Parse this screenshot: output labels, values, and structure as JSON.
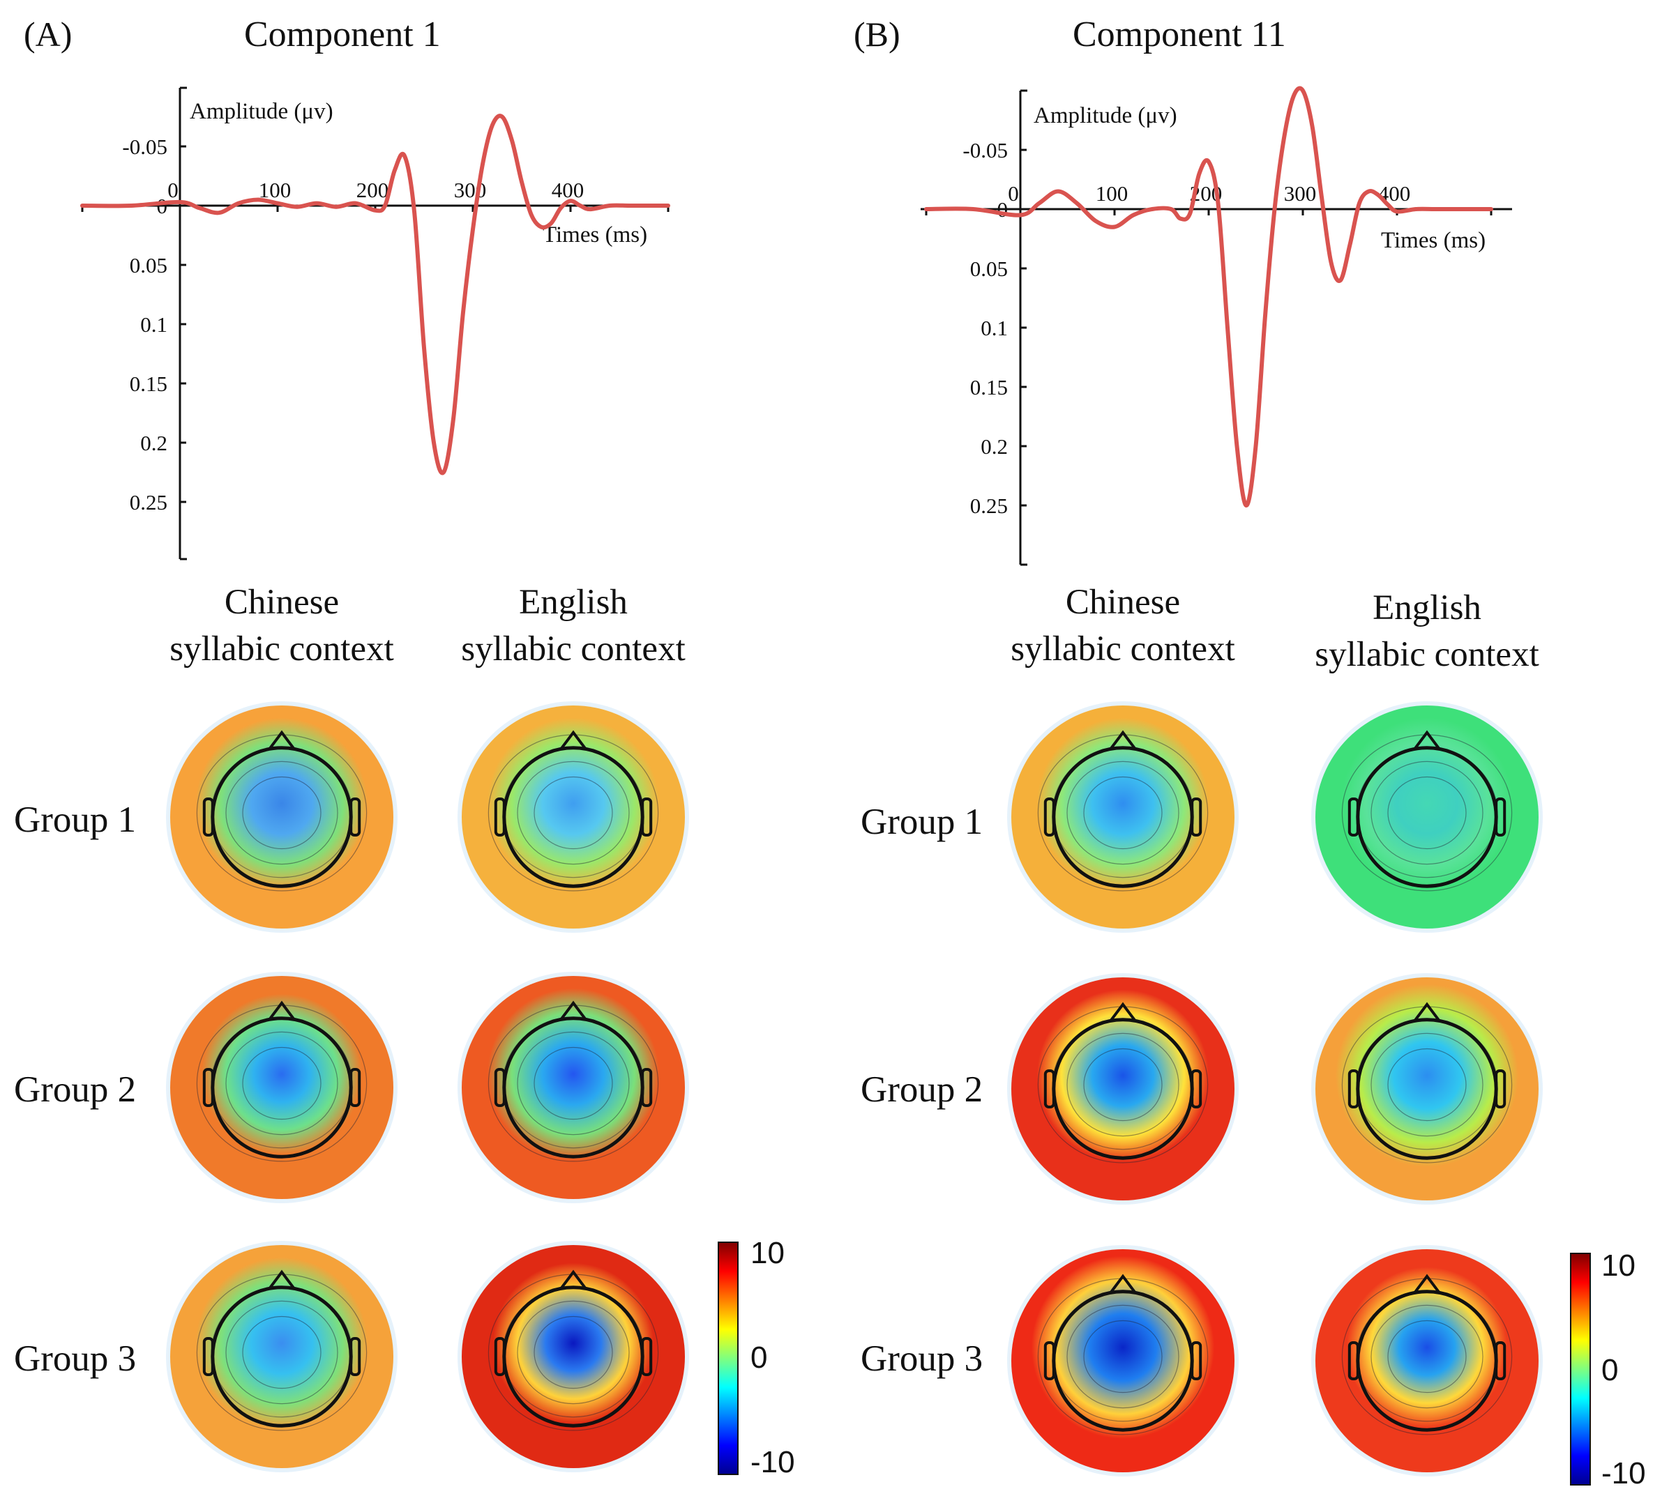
{
  "panels": [
    {
      "label": "(A)",
      "title": "Component 1",
      "chart_data": {
        "type": "line",
        "title": "Component 1",
        "ylabel": "Amplitude (μv)",
        "xlabel": "Times (ms)",
        "y_reversed": true,
        "xlim": [
          -100,
          500
        ],
        "ylim": [
          -0.1,
          0.3
        ],
        "xticks": [
          0,
          100,
          200,
          300,
          400
        ],
        "xtick_labels": [
          "0",
          "100",
          "200",
          "300",
          "400"
        ],
        "yticks": [
          -0.05,
          0,
          0.05,
          0.1,
          0.15,
          0.2,
          0.25
        ],
        "ytick_labels": [
          "-0.05",
          "0",
          "0.05",
          "0.1",
          "0.15",
          "0.2",
          "0.25"
        ],
        "series": [
          {
            "name": "Component 1",
            "color": "#d9534f",
            "x": [
              -100,
              -50,
              0,
              20,
              40,
              60,
              80,
              100,
              120,
              140,
              160,
              180,
              200,
              210,
              220,
              230,
              240,
              250,
              260,
              270,
              280,
              290,
              300,
              310,
              320,
              330,
              340,
              350,
              360,
              370,
              380,
              390,
              400,
              410,
              420,
              440,
              460,
              480,
              500
            ],
            "y": [
              0,
              0,
              -0.003,
              0.002,
              0.006,
              -0.002,
              -0.005,
              -0.002,
              0.001,
              -0.002,
              0.001,
              -0.002,
              0.004,
              0,
              -0.03,
              -0.042,
              0.005,
              0.12,
              0.2,
              0.225,
              0.18,
              0.09,
              0.02,
              -0.035,
              -0.068,
              -0.075,
              -0.055,
              -0.02,
              0.008,
              0.018,
              0.015,
              0.002,
              -0.004,
              0,
              0.003,
              0,
              0,
              0,
              0
            ]
          }
        ]
      },
      "topo_headers": [
        "Chinese syllabic context",
        "English syllabic context"
      ],
      "headers": [
        {
          "line1": "Chinese",
          "line2": "syllabic context"
        },
        {
          "line1": "English",
          "line2": "syllabic context"
        }
      ],
      "row_labels": [
        "Group 1",
        "Group 2",
        "Group 3"
      ],
      "colorbar": {
        "max_label": "10",
        "mid_label": "0",
        "min_label": "-10",
        "range": [
          -10,
          10
        ]
      }
    },
    {
      "label": "(B)",
      "title": "Component 11",
      "chart_data": {
        "type": "line",
        "title": "Component 11",
        "ylabel": "Amplitude (μv)",
        "xlabel": "Times (ms)",
        "y_reversed": true,
        "xlim": [
          -100,
          500
        ],
        "ylim": [
          -0.1,
          0.3
        ],
        "xticks": [
          0,
          100,
          200,
          300,
          400
        ],
        "xtick_labels": [
          "0",
          "100",
          "200",
          "300",
          "400"
        ],
        "yticks": [
          -0.05,
          0,
          0.05,
          0.1,
          0.15,
          0.2,
          0.25
        ],
        "ytick_labels": [
          "-0.05",
          "0",
          "0.05",
          "0.1",
          "0.15",
          "0.2",
          "0.25"
        ],
        "series": [
          {
            "name": "Component 11",
            "color": "#d9534f",
            "x": [
              -100,
              -50,
              0,
              20,
              40,
              60,
              80,
              100,
              120,
              140,
              160,
              170,
              180,
              190,
              200,
              210,
              220,
              230,
              240,
              250,
              260,
              270,
              280,
              290,
              300,
              310,
              320,
              330,
              340,
              350,
              360,
              370,
              380,
              390,
              400,
              420,
              440,
              460,
              480,
              500
            ],
            "y": [
              0,
              0,
              0.005,
              -0.005,
              -0.015,
              -0.005,
              0.01,
              0.015,
              0.005,
              0,
              0,
              0.008,
              0.004,
              -0.03,
              -0.04,
              -0.005,
              0.1,
              0.2,
              0.25,
              0.2,
              0.09,
              0,
              -0.06,
              -0.095,
              -0.1,
              -0.07,
              -0.01,
              0.045,
              0.06,
              0.03,
              -0.005,
              -0.015,
              -0.012,
              -0.004,
              0.002,
              0,
              0,
              0,
              0,
              0
            ]
          }
        ]
      },
      "topo_headers": [
        "Chinese syllabic context",
        "English syllabic context"
      ],
      "headers": [
        {
          "line1": "Chinese",
          "line2": "syllabic context"
        },
        {
          "line1": "English",
          "line2": "syllabic context"
        }
      ],
      "row_labels": [
        "Group 1",
        "Group 2",
        "Group 3"
      ],
      "colorbar": {
        "max_label": "10",
        "mid_label": "0",
        "min_label": "-10",
        "range": [
          -10,
          10
        ]
      }
    }
  ],
  "colors": {
    "line": "#d9534f",
    "colormap": [
      "#00008f",
      "#0000ff",
      "#00ffff",
      "#7fff7f",
      "#ffff00",
      "#ff7f00",
      "#ff0000",
      "#7f0000"
    ]
  }
}
